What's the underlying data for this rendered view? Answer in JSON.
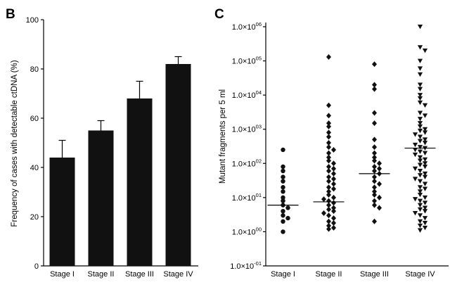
{
  "panel_letters": {
    "left": "B",
    "right": "C"
  },
  "chart_data": [
    {
      "type": "bar",
      "panel": "B",
      "categories": [
        "Stage I",
        "Stage II",
        "Stage III",
        "Stage IV"
      ],
      "values": [
        44,
        55,
        68,
        82
      ],
      "error_upper": [
        51,
        59,
        75,
        85
      ],
      "ylabel": "Frequency of cases with detectable ctDNA (%)",
      "xlabel": "",
      "ylim": [
        0,
        100
      ],
      "yticks": [
        "0",
        "20",
        "40",
        "60",
        "80",
        "100"
      ],
      "bar_color": "#111111",
      "grid": false
    },
    {
      "type": "scatter",
      "panel": "C",
      "scale": "log",
      "categories": [
        "Stage I",
        "Stage II",
        "Stage III",
        "Stage IV"
      ],
      "ylabel": "Mutant fragments per 5 ml",
      "ylim": [
        0.1,
        1000000
      ],
      "ytick_mantissa": "1.0×10",
      "ytick_exponents": [
        "-01",
        "00",
        "01",
        "02",
        "03",
        "04",
        "05",
        "06"
      ],
      "medians": [
        6,
        7.5,
        50,
        280
      ],
      "markers": [
        "circle",
        "diamond",
        "diamond",
        "triangle-down"
      ],
      "series": [
        {
          "category": "Stage I",
          "values": [
            250,
            80,
            60,
            40,
            30,
            20,
            15,
            10,
            8,
            6,
            5,
            4,
            3,
            2.5,
            2,
            1
          ]
        },
        {
          "category": "Stage II",
          "values": [
            130000,
            5000,
            2500,
            1500,
            1200,
            800,
            600,
            400,
            300,
            250,
            200,
            150,
            120,
            100,
            80,
            70,
            60,
            50,
            40,
            35,
            30,
            25,
            20,
            18,
            15,
            12,
            10,
            9,
            8,
            7,
            6,
            5,
            4.5,
            4,
            3.5,
            3,
            2.5,
            2,
            1.8,
            1.5,
            1.3,
            1.2
          ]
        },
        {
          "category": "Stage III",
          "values": [
            80000,
            20000,
            15000,
            3000,
            1500,
            500,
            300,
            200,
            150,
            120,
            100,
            80,
            70,
            60,
            50,
            40,
            30,
            25,
            20,
            15,
            12,
            10,
            8,
            6,
            5,
            2
          ]
        },
        {
          "category": "Stage IV",
          "values": [
            1000000,
            250000,
            200000,
            100000,
            60000,
            40000,
            20000,
            15000,
            10000,
            8000,
            6000,
            5000,
            3000,
            2500,
            2000,
            1500,
            1200,
            1000,
            900,
            800,
            700,
            600,
            500,
            450,
            400,
            350,
            300,
            280,
            250,
            220,
            200,
            180,
            150,
            130,
            120,
            100,
            90,
            80,
            70,
            60,
            50,
            45,
            40,
            35,
            30,
            25,
            20,
            18,
            15,
            12,
            10,
            9,
            8,
            7,
            6,
            5,
            4.5,
            4,
            3.5,
            3,
            2.5,
            2,
            1.8,
            1.5,
            1.3,
            1.1
          ]
        }
      ],
      "marker_color": "#111111",
      "grid": false
    }
  ]
}
